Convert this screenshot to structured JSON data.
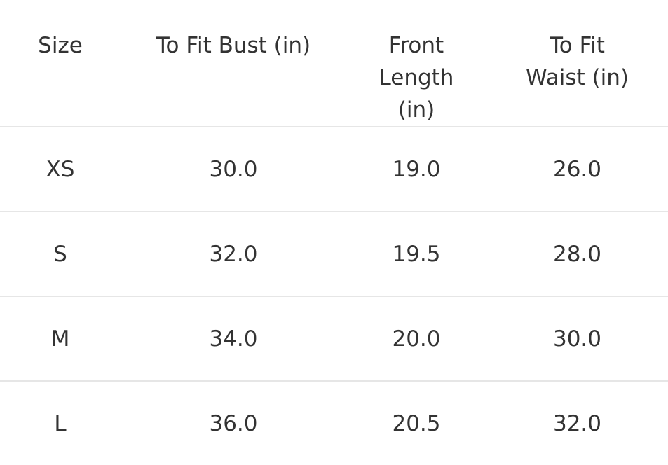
{
  "table": {
    "headers": [
      "Size",
      "To Fit Bust (in)",
      "Front Length (in)",
      "To Fit Waist (in)"
    ],
    "rows": [
      [
        "XS",
        "30.0",
        "19.0",
        "26.0"
      ],
      [
        "S",
        "32.0",
        "19.5",
        "28.0"
      ],
      [
        "M",
        "34.0",
        "20.0",
        "30.0"
      ],
      [
        "L",
        "36.0",
        "20.5",
        "32.0"
      ]
    ]
  }
}
